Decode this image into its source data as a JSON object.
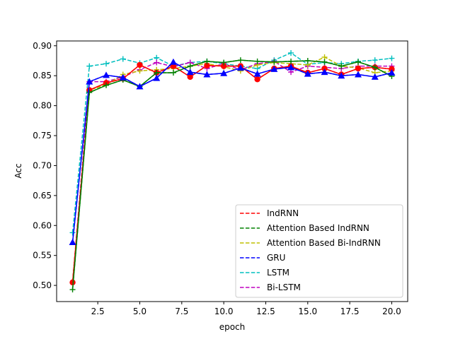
{
  "chart_data": {
    "type": "line",
    "title": "",
    "xlabel": "epoch",
    "ylabel": "Acc",
    "xlim": [
      0.05,
      20.95
    ],
    "ylim": [
      0.473,
      0.908
    ],
    "xticks": [
      2.5,
      5.0,
      7.5,
      10.0,
      12.5,
      15.0,
      17.5,
      20.0
    ],
    "xtick_labels": [
      "2.5",
      "5.0",
      "7.5",
      "10.0",
      "12.5",
      "15.0",
      "17.5",
      "20.0"
    ],
    "yticks": [
      0.5,
      0.55,
      0.6,
      0.65,
      0.7,
      0.75,
      0.8,
      0.85,
      0.9
    ],
    "ytick_labels": [
      "0.50",
      "0.55",
      "0.60",
      "0.65",
      "0.70",
      "0.75",
      "0.80",
      "0.85",
      "0.90"
    ],
    "grid": false,
    "legend_position": "lower-right",
    "x": [
      1,
      2,
      3,
      4,
      5,
      6,
      7,
      8,
      9,
      10,
      11,
      12,
      13,
      14,
      15,
      16,
      17,
      18,
      19,
      20
    ],
    "series": [
      {
        "name": "IndRNN",
        "color": "#ff0000",
        "dashed": true,
        "values": [
          0.505,
          0.826,
          0.838,
          0.845,
          0.868,
          0.855,
          0.866,
          0.848,
          0.867,
          0.866,
          0.866,
          0.844,
          0.862,
          0.866,
          0.855,
          0.862,
          0.852,
          0.862,
          0.864,
          0.861
        ]
      },
      {
        "name": "Attention Based IndRNN",
        "color": "#008000",
        "dashed": true,
        "values": [
          0.493,
          0.822,
          0.834,
          0.843,
          0.832,
          0.855,
          0.855,
          0.866,
          0.874,
          0.872,
          0.876,
          0.874,
          0.873,
          0.874,
          0.875,
          0.873,
          0.866,
          0.873,
          0.864,
          0.849
        ]
      },
      {
        "name": "Attention Based Bi-IndRNN",
        "color": "#bfbf00",
        "dashed": true,
        "values": [
          0.505,
          0.826,
          0.835,
          0.852,
          0.858,
          0.86,
          0.862,
          0.866,
          0.87,
          0.865,
          0.858,
          0.868,
          0.872,
          0.87,
          0.868,
          0.881,
          0.866,
          0.863,
          0.855,
          0.858
        ]
      },
      {
        "name": "GRU",
        "color": "#0000ff",
        "dashed": true,
        "values": [
          0.572,
          0.84,
          0.851,
          0.847,
          0.832,
          0.846,
          0.873,
          0.856,
          0.852,
          0.854,
          0.863,
          0.853,
          0.861,
          0.864,
          0.853,
          0.856,
          0.85,
          0.852,
          0.848,
          0.855
        ]
      },
      {
        "name": "LSTM",
        "color": "#00bfbf",
        "dashed": true,
        "values": [
          0.588,
          0.866,
          0.87,
          0.878,
          0.871,
          0.88,
          0.866,
          0.872,
          0.874,
          0.87,
          0.866,
          0.862,
          0.876,
          0.888,
          0.869,
          0.872,
          0.87,
          0.874,
          0.876,
          0.879
        ]
      },
      {
        "name": "Bi-LSTM",
        "color": "#bf00bf",
        "dashed": true,
        "values": [
          0.505,
          0.84,
          0.84,
          0.848,
          0.86,
          0.872,
          0.865,
          0.872,
          0.862,
          0.87,
          0.86,
          0.87,
          0.874,
          0.856,
          0.866,
          0.864,
          0.862,
          0.866,
          0.866,
          0.866
        ]
      }
    ]
  }
}
